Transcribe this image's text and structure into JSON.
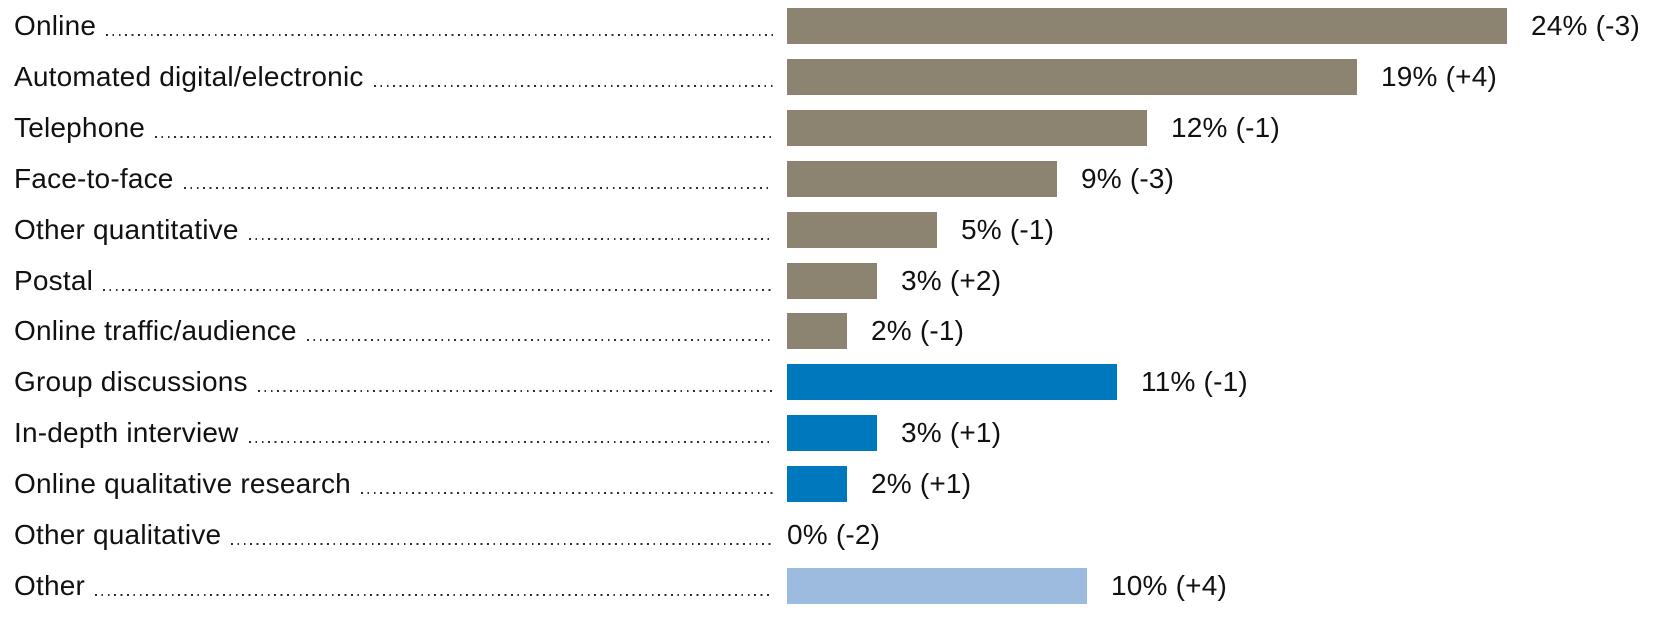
{
  "chart_data": {
    "type": "bar",
    "orientation": "horizontal",
    "title": "",
    "xlabel": "",
    "ylabel": "",
    "value_unit": "%",
    "xlim": [
      0,
      24
    ],
    "grid": false,
    "legend": false,
    "background": "#ffffff",
    "text_color": "#111111",
    "leader_dot_color": "#2e2e2e",
    "colors": {
      "quantitative": "#8C8470",
      "qualitative": "#0078BE",
      "other": "#9CBBDE"
    },
    "categories": [
      "Online",
      "Automated digital/electronic",
      "Telephone",
      "Face-to-face",
      "Other quantitative",
      "Postal",
      "Online traffic/audience",
      "Group discussions",
      "In-depth interview",
      "Online qualitative research",
      "Other qualitative",
      "Other"
    ],
    "rows": [
      {
        "label": "Online",
        "value": 24,
        "change": "-3",
        "value_label": "24% (-3)",
        "color": "quantitative"
      },
      {
        "label": "Automated digital/electronic",
        "value": 19,
        "change": "+4",
        "value_label": "19% (+4)",
        "color": "quantitative"
      },
      {
        "label": "Telephone",
        "value": 12,
        "change": "-1",
        "value_label": "12% (-1)",
        "color": "quantitative"
      },
      {
        "label": "Face-to-face",
        "value": 9,
        "change": "-3",
        "value_label": "9% (-3)",
        "color": "quantitative"
      },
      {
        "label": "Other quantitative",
        "value": 5,
        "change": "-1",
        "value_label": "5% (-1)",
        "color": "quantitative"
      },
      {
        "label": "Postal",
        "value": 3,
        "change": "+2",
        "value_label": "3% (+2)",
        "color": "quantitative"
      },
      {
        "label": "Online traffic/audience",
        "value": 2,
        "change": "-1",
        "value_label": "2% (-1)",
        "color": "quantitative"
      },
      {
        "label": "Group discussions",
        "value": 11,
        "change": "-1",
        "value_label": "11% (-1)",
        "color": "qualitative"
      },
      {
        "label": "In-depth interview",
        "value": 3,
        "change": "+1",
        "value_label": "3% (+1)",
        "color": "qualitative"
      },
      {
        "label": "Online qualitative research",
        "value": 2,
        "change": "+1",
        "value_label": "2% (+1)",
        "color": "qualitative"
      },
      {
        "label": "Other qualitative",
        "value": 0,
        "change": "-2",
        "value_label": "0% (-2)",
        "color": "qualitative"
      },
      {
        "label": "Other",
        "value": 10,
        "change": "+4",
        "value_label": "10% (+4)",
        "color": "other"
      }
    ]
  }
}
